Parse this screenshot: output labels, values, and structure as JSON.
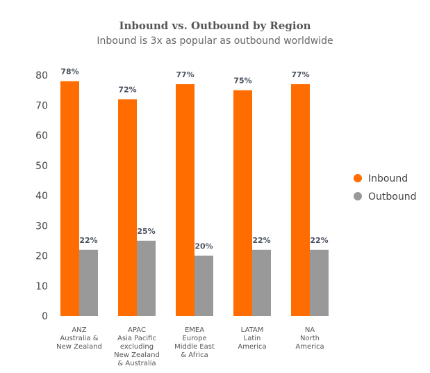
{
  "chart_data": {
    "type": "bar",
    "title": "Inbound vs. Outbound by Region",
    "subtitle": "Inbound is 3x as popular as outbound worldwide",
    "categories": [
      [
        "ANZ",
        "Australia &",
        "New Zealand"
      ],
      [
        "APAC",
        "Asia Pacific",
        "excluding",
        "New Zealand",
        "& Australia"
      ],
      [
        "EMEA",
        "Europe",
        "Middle East",
        "& Africa"
      ],
      [
        "LATAM",
        "Latin",
        "America"
      ],
      [
        "NA",
        "North",
        "America"
      ]
    ],
    "series": [
      {
        "name": "Inbound",
        "color": "#ff6d00",
        "values": [
          78,
          72,
          77,
          75,
          77
        ],
        "labels": [
          "78%",
          "72%",
          "77%",
          "75%",
          "77%"
        ]
      },
      {
        "name": "Outbound",
        "color": "#999999",
        "values": [
          22,
          25,
          20,
          22,
          22
        ],
        "labels": [
          "22%",
          "25%",
          "20%",
          "22%",
          "22%"
        ]
      }
    ],
    "yticks": [
      "0",
      "10",
      "20",
      "30",
      "40",
      "50",
      "60",
      "70",
      "80"
    ],
    "ylim": [
      0,
      80
    ],
    "grid": false,
    "legend": "right"
  }
}
